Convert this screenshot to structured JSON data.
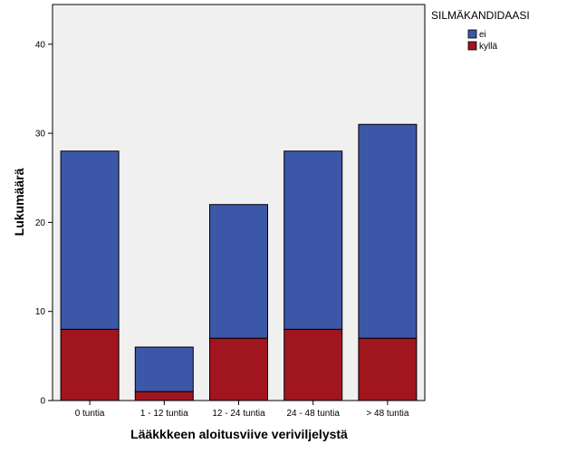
{
  "chart_data": {
    "type": "bar",
    "stacked": true,
    "title": "",
    "xlabel": "Lääkkkeen aloitusviive veriviljelystä",
    "ylabel": "Lukumäärä",
    "categories": [
      "0 tuntia",
      "1 - 12 tuntia",
      "12 - 24 tuntia",
      "24 - 48 tuntia",
      "> 48 tuntia"
    ],
    "series": [
      {
        "name": "kyllä",
        "values": [
          8,
          1,
          7,
          8,
          7
        ],
        "color": "#a0151e"
      },
      {
        "name": "ei",
        "values": [
          20,
          5,
          15,
          20,
          24
        ],
        "color": "#3d57a8"
      }
    ],
    "ylim": [
      0,
      45
    ],
    "yticks": [
      0,
      10,
      20,
      30,
      40
    ],
    "grid": false,
    "plot_background": "#f0f0f0",
    "legend": {
      "title": "SILMÄKANDIDAASI",
      "placement": "outside-top-right",
      "order": [
        "ei",
        "kyllä"
      ]
    }
  }
}
